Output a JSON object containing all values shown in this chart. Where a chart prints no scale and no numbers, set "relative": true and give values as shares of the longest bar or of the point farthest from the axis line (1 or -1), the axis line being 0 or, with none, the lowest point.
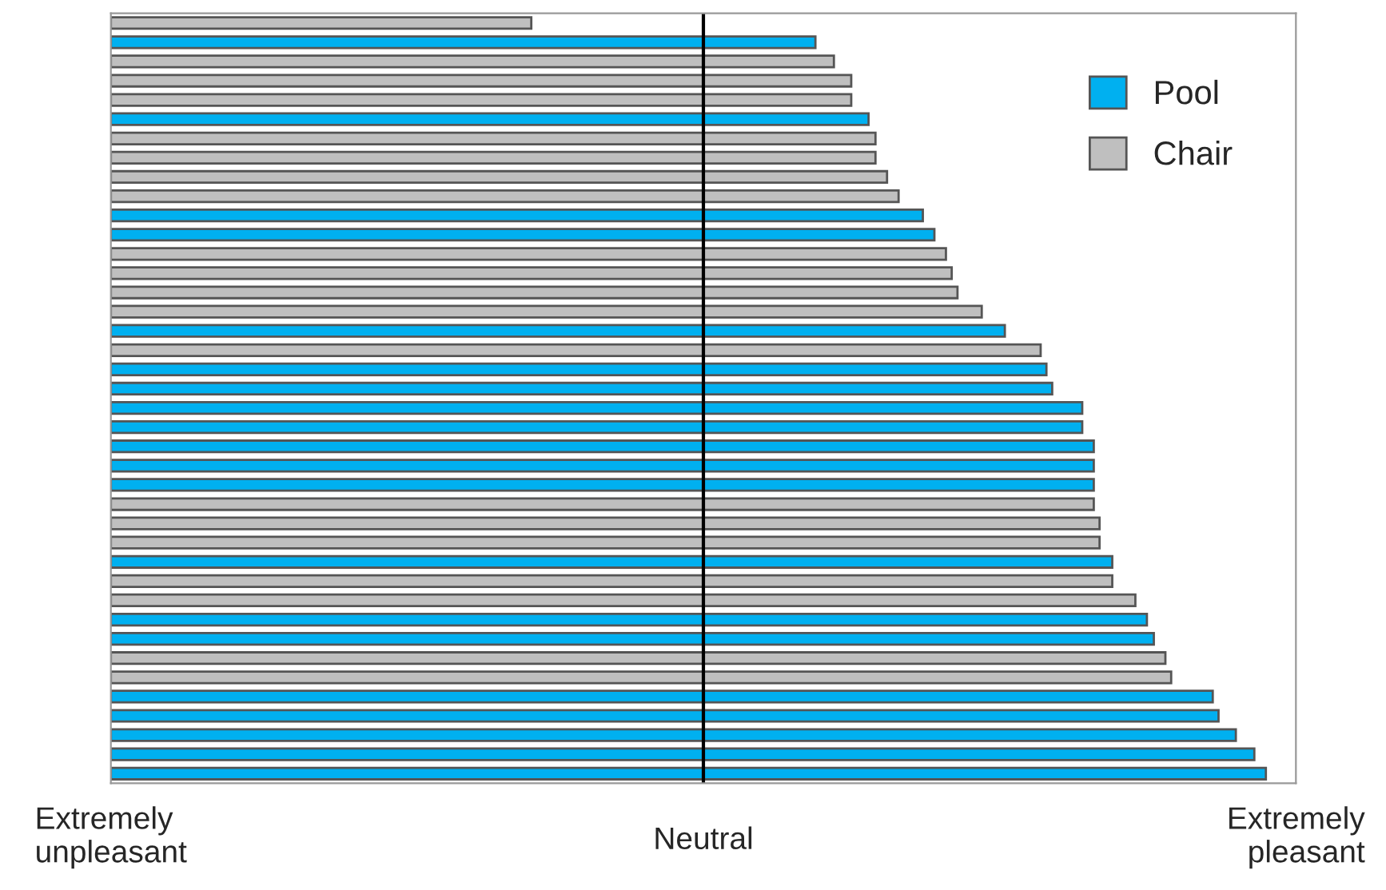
{
  "chart_data": {
    "type": "bar",
    "orientation": "horizontal",
    "relative": true,
    "categories": [
      null,
      null,
      null,
      null,
      null,
      null,
      null,
      null,
      null,
      null,
      null,
      null,
      null,
      null,
      null,
      null,
      null,
      null,
      null,
      null,
      null,
      null,
      null,
      null,
      null,
      null,
      null,
      null,
      null,
      null,
      null,
      null,
      null,
      null,
      null,
      null,
      null,
      null,
      null,
      null
    ],
    "series": [
      {
        "name": "Pool",
        "color": "#00b0f0",
        "values": [
          null,
          0.61,
          null,
          null,
          null,
          0.656,
          null,
          null,
          null,
          null,
          0.703,
          0.713,
          null,
          null,
          null,
          null,
          0.774,
          null,
          0.81,
          0.815,
          0.841,
          0.841,
          0.851,
          0.851,
          0.851,
          null,
          null,
          null,
          0.867,
          null,
          null,
          0.897,
          0.903,
          null,
          null,
          0.954,
          0.959,
          0.974,
          0.99,
          1
        ]
      },
      {
        "name": "Chair",
        "color": "#bfbfbf",
        "values": [
          0.364,
          null,
          0.626,
          0.641,
          0.641,
          null,
          0.662,
          0.662,
          0.672,
          0.682,
          null,
          null,
          0.723,
          0.728,
          0.733,
          0.754,
          null,
          0.805,
          null,
          null,
          null,
          null,
          null,
          null,
          null,
          0.851,
          0.856,
          0.856,
          null,
          0.867,
          0.887,
          null,
          null,
          0.913,
          0.918,
          null,
          null,
          null,
          null,
          null
        ]
      }
    ],
    "stacked": true,
    "annotations": [
      "Extremely\nunpleasant",
      "Extremely\npleasant"
    ],
    "ref_lines": [
      {
        "axis": "x",
        "value": 0.513,
        "label": "Neutral",
        "color": "#000000"
      }
    ],
    "legend": "top right",
    "grid": false
  }
}
